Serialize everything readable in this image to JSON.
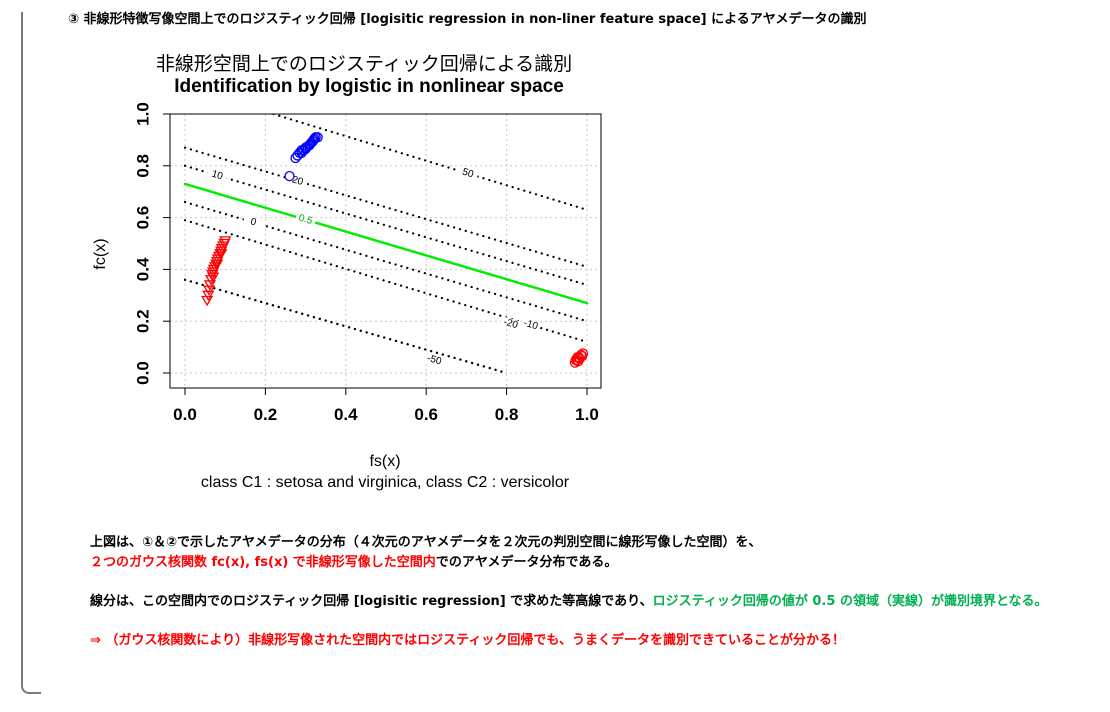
{
  "header": {
    "text": "③ 非線形特徴写像空間上でのロジスティック回帰 [logisitic regression in non-liner feature space] によるアヤメデータの識別"
  },
  "chart_data": {
    "type": "scatter",
    "title": "非線形空間上でのロジスティック回帰による識別",
    "subtitle": "Identification by logistic in nonlinear space",
    "xlabel": "fs(x)",
    "ylabel": "fc(x)",
    "caption": "class C1 : setosa and virginica, class C2 : versicolor",
    "xlim": [
      0,
      1
    ],
    "ylim": [
      0,
      1
    ],
    "xticks": [
      "0.0",
      "0.2",
      "0.4",
      "0.6",
      "0.8",
      "1.0"
    ],
    "yticks": [
      "0.0",
      "0.2",
      "0.4",
      "0.6",
      "0.8",
      "1.0"
    ],
    "grid": true,
    "contours": [
      {
        "label": "50",
        "style": "dotted",
        "color": "#000000",
        "points": [
          [
            0.22,
            1.0
          ],
          [
            1.0,
            0.63
          ]
        ]
      },
      {
        "label": "20",
        "style": "dotted",
        "color": "#000000",
        "points": [
          [
            0.0,
            0.87
          ],
          [
            1.0,
            0.41
          ]
        ]
      },
      {
        "label": "10",
        "style": "dotted",
        "color": "#000000",
        "points": [
          [
            0.0,
            0.8
          ],
          [
            1.0,
            0.34
          ]
        ]
      },
      {
        "label": "0.5",
        "style": "solid",
        "color": "#00ee00",
        "points": [
          [
            0.0,
            0.73
          ],
          [
            1.0,
            0.27
          ]
        ]
      },
      {
        "label": "0",
        "style": "dotted",
        "color": "#000000",
        "points": [
          [
            0.0,
            0.66
          ],
          [
            1.0,
            0.2
          ]
        ]
      },
      {
        "label": "-10",
        "style": "dotted",
        "color": "#000000",
        "points": [
          [
            0.0,
            0.59
          ],
          [
            1.0,
            0.12
          ]
        ]
      },
      {
        "label": "-20",
        "style": "dotted",
        "color": "#000000",
        "points": [
          [
            0.0,
            0.36
          ],
          [
            0.8,
            0.0
          ]
        ]
      },
      {
        "label": "-50",
        "style": "dotted",
        "color": "#000000",
        "points": [
          [
            0.0,
            0.36
          ],
          [
            0.8,
            0.0
          ]
        ]
      }
    ],
    "series": [
      {
        "marker": "o",
        "color": "#0000ff",
        "points": [
          [
            0.26,
            0.76
          ],
          [
            0.275,
            0.83
          ],
          [
            0.28,
            0.84
          ],
          [
            0.285,
            0.85
          ],
          [
            0.29,
            0.86
          ],
          [
            0.295,
            0.86
          ],
          [
            0.3,
            0.87
          ],
          [
            0.305,
            0.875
          ],
          [
            0.31,
            0.88
          ],
          [
            0.312,
            0.885
          ],
          [
            0.315,
            0.89
          ],
          [
            0.318,
            0.895
          ],
          [
            0.32,
            0.9
          ],
          [
            0.322,
            0.905
          ],
          [
            0.325,
            0.91
          ],
          [
            0.33,
            0.91
          ],
          [
            0.3,
            0.865
          ],
          [
            0.29,
            0.85
          ]
        ]
      },
      {
        "marker": "v",
        "color": "#ff0000",
        "points": [
          [
            0.055,
            0.28
          ],
          [
            0.058,
            0.3
          ],
          [
            0.06,
            0.32
          ],
          [
            0.062,
            0.34
          ],
          [
            0.065,
            0.36
          ],
          [
            0.068,
            0.38
          ],
          [
            0.07,
            0.39
          ],
          [
            0.072,
            0.4
          ],
          [
            0.075,
            0.41
          ],
          [
            0.078,
            0.42
          ],
          [
            0.08,
            0.43
          ],
          [
            0.082,
            0.44
          ],
          [
            0.085,
            0.45
          ],
          [
            0.088,
            0.46
          ],
          [
            0.09,
            0.47
          ],
          [
            0.092,
            0.48
          ],
          [
            0.095,
            0.49
          ],
          [
            0.098,
            0.5
          ],
          [
            0.1,
            0.51
          ],
          [
            0.07,
            0.37
          ],
          [
            0.08,
            0.42
          ],
          [
            0.09,
            0.46
          ]
        ]
      },
      {
        "marker": "o",
        "color": "#ff0000",
        "points": [
          [
            0.97,
            0.04
          ],
          [
            0.975,
            0.05
          ],
          [
            0.98,
            0.06
          ],
          [
            0.985,
            0.07
          ],
          [
            0.978,
            0.045
          ],
          [
            0.982,
            0.055
          ],
          [
            0.988,
            0.065
          ],
          [
            0.972,
            0.05
          ],
          [
            0.99,
            0.075
          ],
          [
            0.976,
            0.06
          ]
        ]
      }
    ]
  },
  "description": {
    "line1": "上図は、①＆②で示したアヤメデータの分布（４次元のアヤメデータを２次元の判別空間に線形写像した空間）を、",
    "line2_red": "２つのガウス核関数 fc(x), fs(x) で非線形写像した空間内",
    "line2_rest": "でのアヤメデータ分布である。",
    "line3_black": "線分は、この空間内でのロジスティック回帰 [logisitic regression] で求めた等高線であり、",
    "line3_green": "ロジスティック回帰の値が 0.5 の領域（実線）が識別境界となる。",
    "line4": "⇒ （ガウス核関数により）非線形写像された空間内ではロジスティック回帰でも、うまくデータを識別できていることが分かる！"
  }
}
